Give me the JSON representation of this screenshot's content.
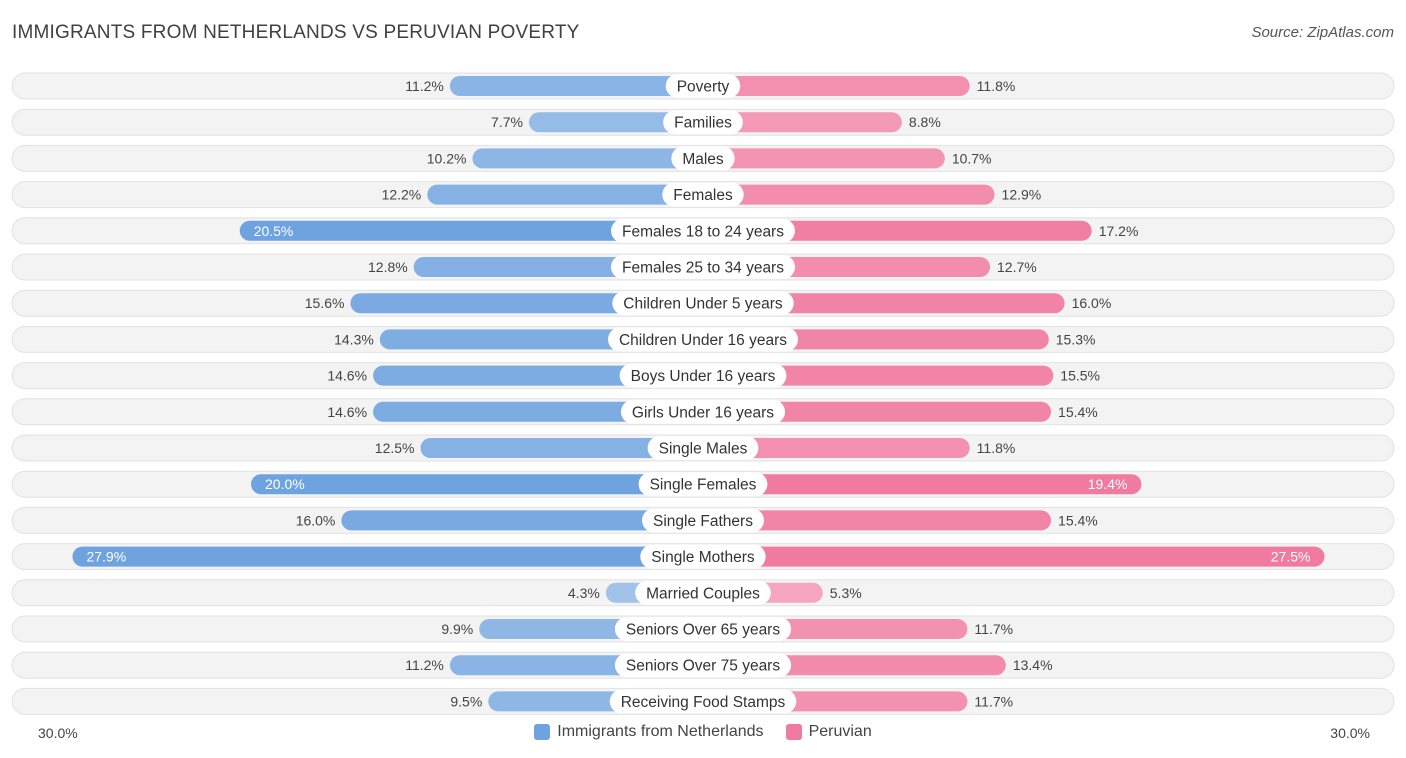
{
  "header": {
    "title": "IMMIGRANTS FROM NETHERLANDS VS PERUVIAN POVERTY",
    "source": "Source: ZipAtlas.com"
  },
  "colors": {
    "left": "#6fa3df",
    "right": "#f07aa0",
    "row_bg": "#f1f1f1",
    "label_bg": "#ffffff"
  },
  "axis": {
    "left_label": "30.0%",
    "right_label": "30.0%"
  },
  "chart_data": {
    "type": "bar",
    "orientation": "horizontal-diverging",
    "title": "IMMIGRANTS FROM NETHERLANDS VS PERUVIAN POVERTY",
    "xlim": [
      0,
      30
    ],
    "categories": [
      "Poverty",
      "Families",
      "Males",
      "Females",
      "Females 18 to 24 years",
      "Females 25 to 34 years",
      "Children Under 5 years",
      "Children Under 16 years",
      "Boys Under 16 years",
      "Girls Under 16 years",
      "Single Males",
      "Single Females",
      "Single Fathers",
      "Single Mothers",
      "Married Couples",
      "Seniors Over 65 years",
      "Seniors Over 75 years",
      "Receiving Food Stamps"
    ],
    "series": [
      {
        "name": "Immigrants from Netherlands",
        "values": [
          11.2,
          7.7,
          10.2,
          12.2,
          20.5,
          12.8,
          15.6,
          14.3,
          14.6,
          14.6,
          12.5,
          20.0,
          16.0,
          27.9,
          4.3,
          9.9,
          11.2,
          9.5
        ],
        "labels": [
          "11.2%",
          "7.7%",
          "10.2%",
          "12.2%",
          "20.5%",
          "12.8%",
          "15.6%",
          "14.3%",
          "14.6%",
          "14.6%",
          "12.5%",
          "20.0%",
          "16.0%",
          "27.9%",
          "4.3%",
          "9.9%",
          "11.2%",
          "9.5%"
        ]
      },
      {
        "name": "Peruvian",
        "values": [
          11.8,
          8.8,
          10.7,
          12.9,
          17.2,
          12.7,
          16.0,
          15.3,
          15.5,
          15.4,
          11.8,
          19.4,
          15.4,
          27.5,
          5.3,
          11.7,
          13.4,
          11.7
        ],
        "labels": [
          "11.8%",
          "8.8%",
          "10.7%",
          "12.9%",
          "17.2%",
          "12.7%",
          "16.0%",
          "15.3%",
          "15.5%",
          "15.4%",
          "11.8%",
          "19.4%",
          "15.4%",
          "27.5%",
          "5.3%",
          "11.7%",
          "13.4%",
          "11.7%"
        ]
      }
    ],
    "legend": [
      "Immigrants from Netherlands",
      "Peruvian"
    ],
    "legend_position": "bottom-center"
  }
}
